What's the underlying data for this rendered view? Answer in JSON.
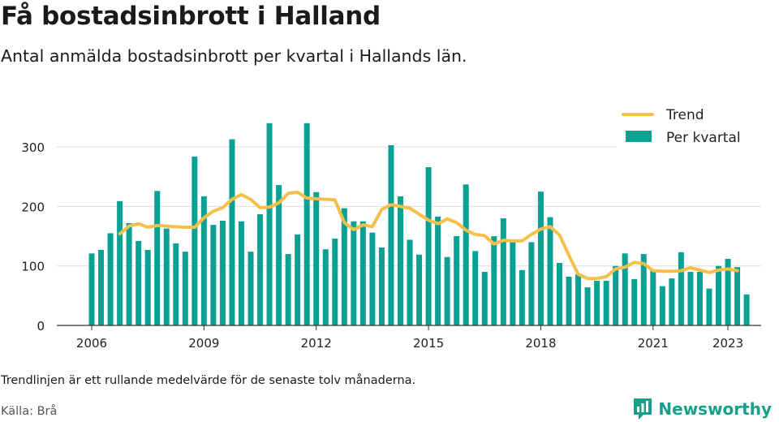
{
  "header": {
    "title": "Få bostadsinbrott i Halland",
    "subtitle": "Antal anmälda bostadsinbrott per kvartal i Hallands län."
  },
  "footer": {
    "note": "Trendlinjen är ett rullande medelvärde för de senaste tolv månaderna.",
    "source": "Källa: Brå",
    "brand": "Newsworthy"
  },
  "colors": {
    "bar": "#0aa195",
    "trend": "#f5c04a",
    "grid": "#dddddd",
    "brand": "#16a08a"
  },
  "chart_data": {
    "type": "bar",
    "title": "Få bostadsinbrott i Halland",
    "subtitle": "Antal anmälda bostadsinbrott per kvartal i Hallands län.",
    "start": "2006 Q1",
    "ylim": [
      0,
      350
    ],
    "yticks": [
      0,
      100,
      200,
      300
    ],
    "xticks": [
      "2006",
      "2009",
      "2012",
      "2015",
      "2018",
      "2021",
      "2023"
    ],
    "grid": true,
    "legend": "top-right",
    "series": [
      {
        "name": "Per kvartal",
        "type": "bar",
        "values": [
          121,
          127,
          155,
          209,
          172,
          142,
          127,
          226,
          163,
          138,
          124,
          284,
          217,
          169,
          176,
          313,
          175,
          124,
          187,
          340,
          236,
          120,
          153,
          340,
          224,
          128,
          146,
          197,
          175,
          175,
          156,
          131,
          303,
          217,
          144,
          119,
          266,
          183,
          115,
          150,
          237,
          125,
          90,
          150,
          180,
          140,
          93,
          140,
          225,
          182,
          105,
          82,
          86,
          64,
          75,
          75,
          100,
          121,
          78,
          120,
          93,
          66,
          79,
          123,
          90,
          90,
          62,
          100,
          112,
          98,
          52
        ]
      },
      {
        "name": "Trend",
        "type": "line",
        "start_index": 3,
        "values": [
          154,
          167,
          171,
          165,
          168,
          167,
          166,
          165,
          165,
          181,
          192,
          198,
          212,
          220,
          212,
          198,
          199,
          206,
          222,
          224,
          214,
          213,
          212,
          211,
          173,
          161,
          169,
          166,
          195,
          203,
          200,
          197,
          187,
          177,
          171,
          179,
          173,
          160,
          153,
          151,
          137,
          143,
          142,
          142,
          153,
          162,
          166,
          152,
          118,
          86,
          79,
          79,
          82,
          95,
          98,
          106,
          104,
          92,
          91,
          91,
          92,
          97,
          93,
          89,
          93,
          95,
          92
        ]
      }
    ]
  }
}
